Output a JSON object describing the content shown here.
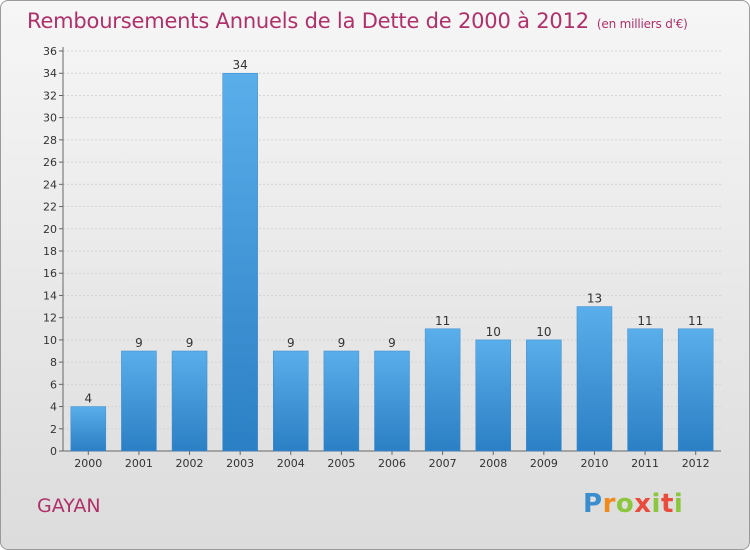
{
  "header": {
    "title": "Remboursements Annuels de la Dette de 2000 à 2012",
    "unit": "(en milliers d'€)"
  },
  "footer": {
    "city": "GAYAN",
    "logo_text": [
      "P",
      "r",
      "o",
      "x",
      "i",
      "t",
      "i"
    ]
  },
  "colors": {
    "title": "#b0306a",
    "bar_light": "#5aaeea",
    "bar_dark": "#2b7fc4",
    "grid": "#d4d4d4"
  },
  "chart_data": {
    "type": "bar",
    "title": "Remboursements Annuels de la Dette de 2000 à 2012",
    "xlabel": "",
    "ylabel": "",
    "categories": [
      "2000",
      "2001",
      "2002",
      "2003",
      "2004",
      "2005",
      "2006",
      "2007",
      "2008",
      "2009",
      "2010",
      "2011",
      "2012"
    ],
    "values": [
      4,
      9,
      9,
      34,
      9,
      9,
      9,
      11,
      10,
      10,
      13,
      11,
      11
    ],
    "data_labels": [
      "4",
      "9",
      "9",
      "34",
      "9",
      "9",
      "9",
      "11",
      "10",
      "10",
      "13",
      "11",
      "11"
    ],
    "yticks": [
      "0",
      "2",
      "4",
      "6",
      "8",
      "10",
      "12",
      "14",
      "16",
      "18",
      "20",
      "22",
      "24",
      "26",
      "28",
      "30",
      "32",
      "34",
      "36"
    ],
    "ylim": [
      0,
      36
    ],
    "grid": true
  }
}
